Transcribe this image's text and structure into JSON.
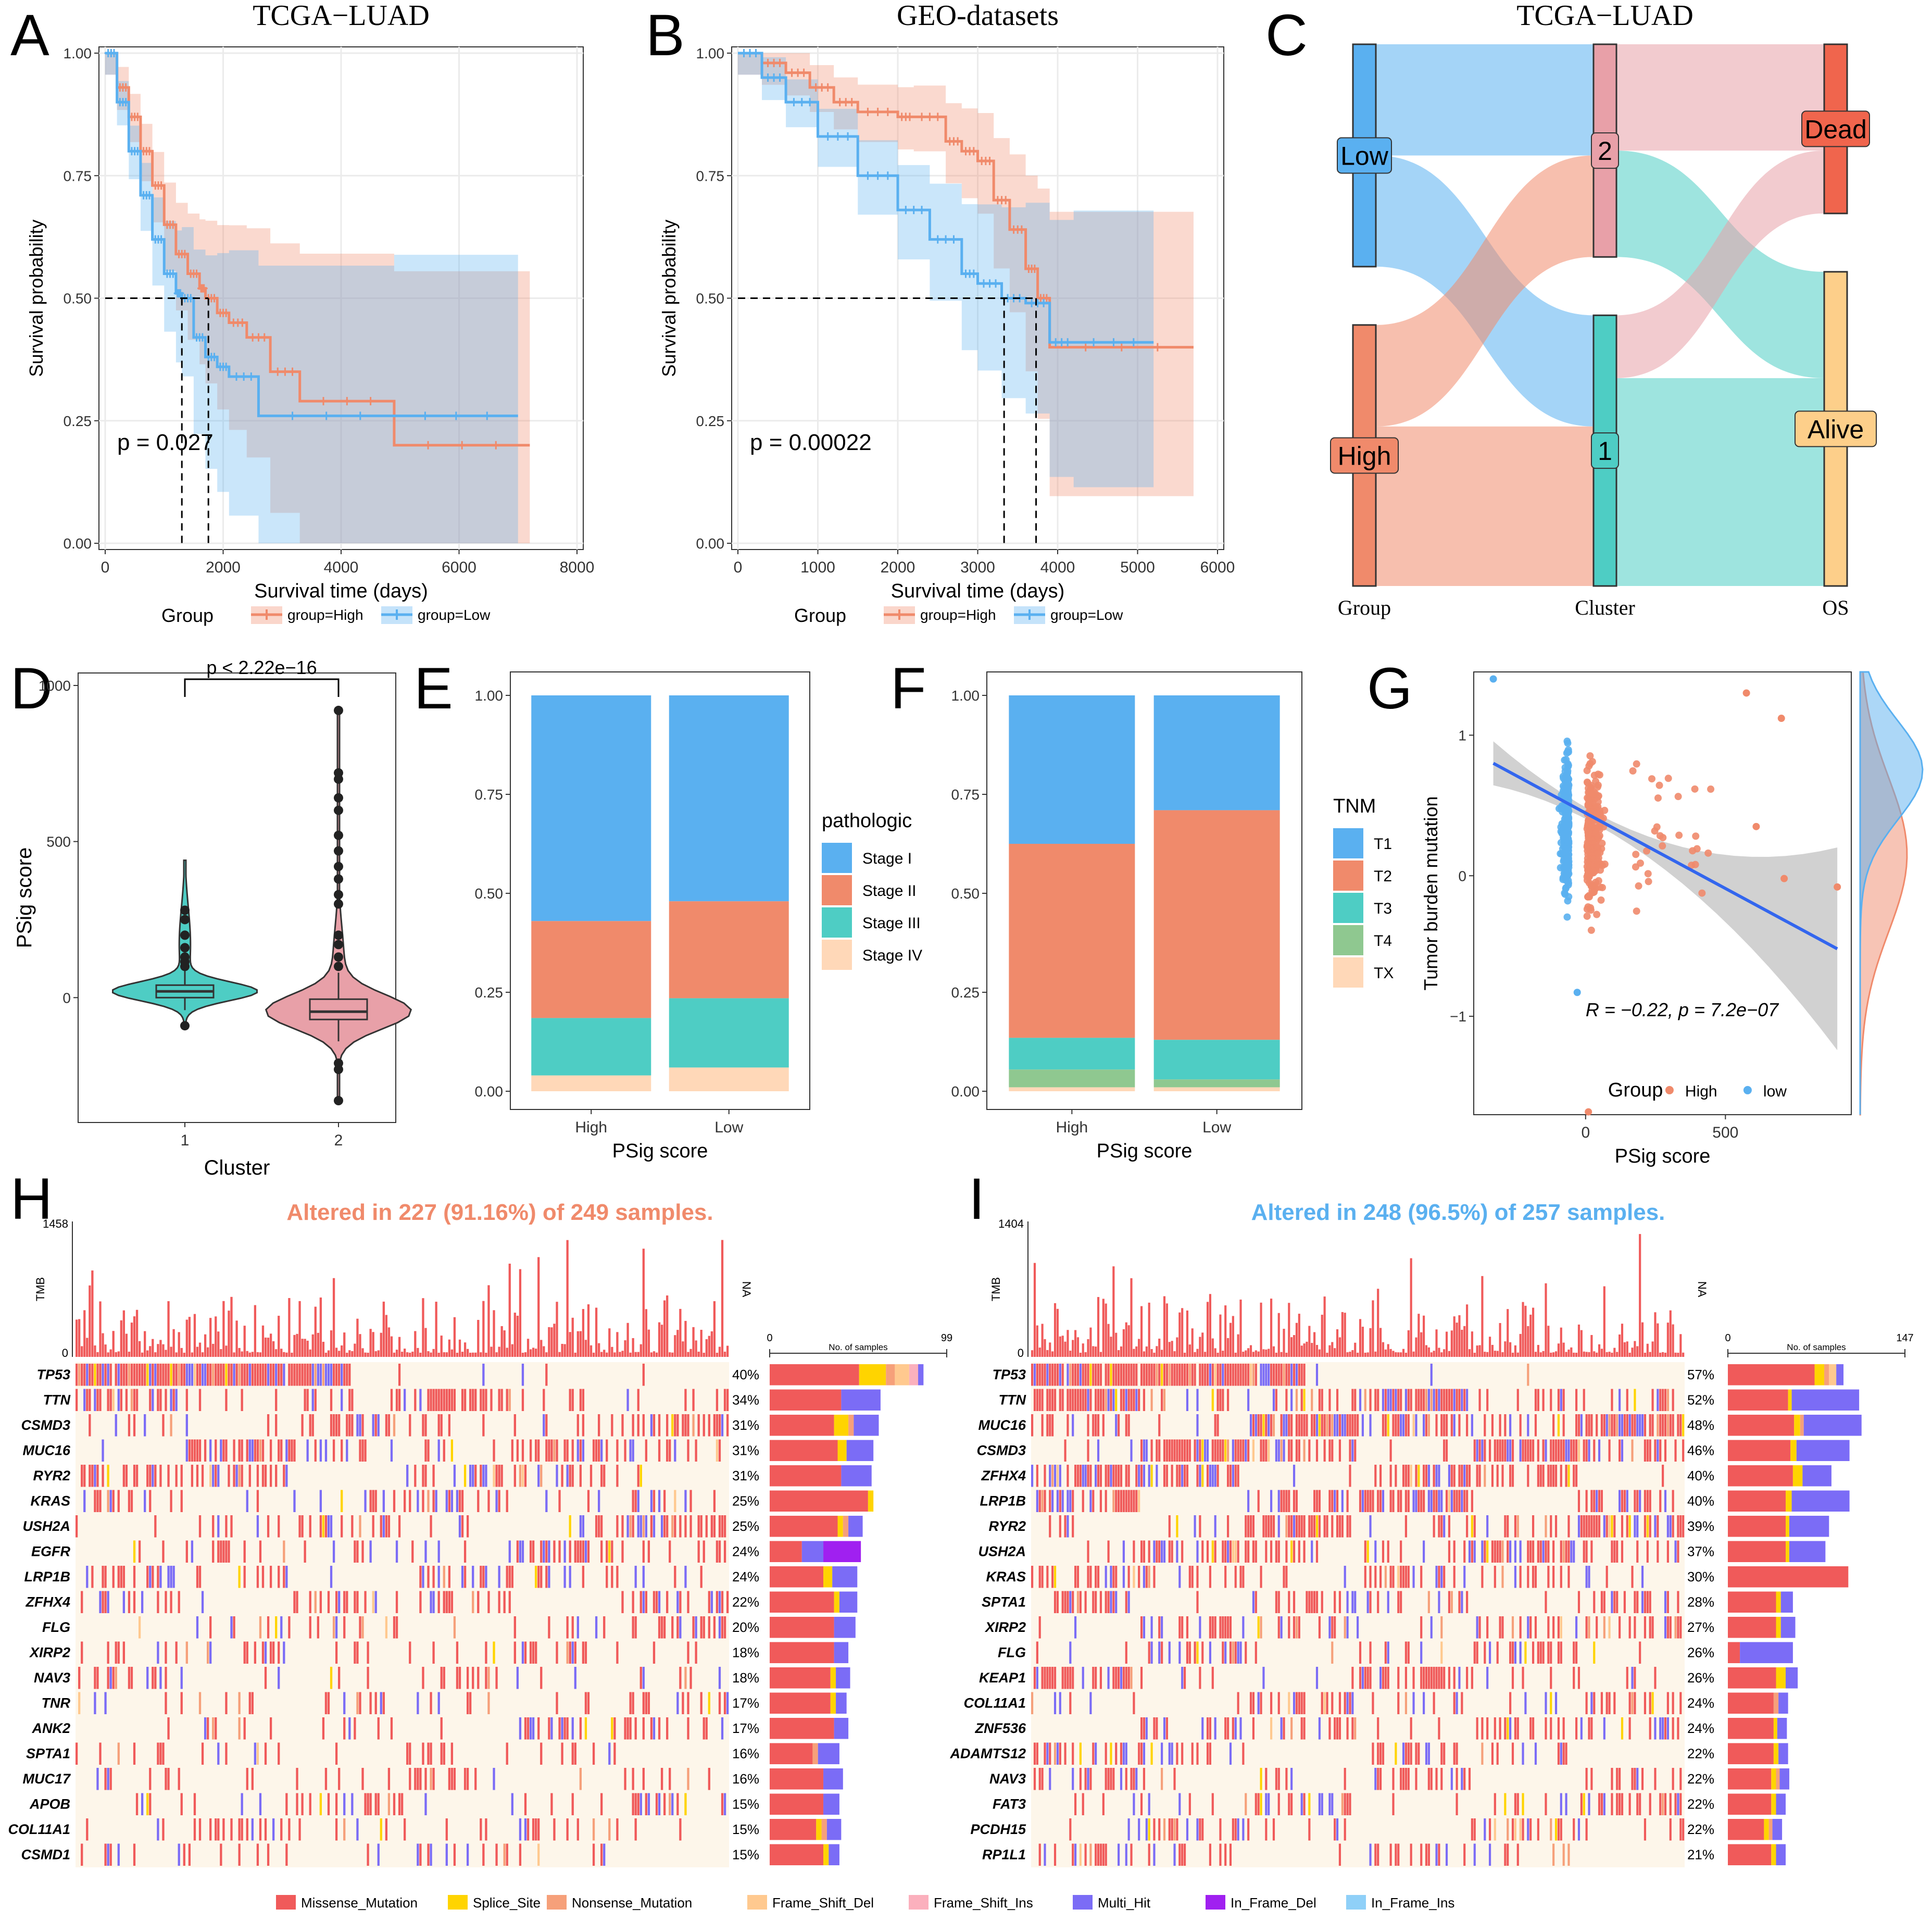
{
  "colors": {
    "high": "#F08A6B",
    "low": "#5AB0F0",
    "teal": "#4ECDC4",
    "pink": "#E8A0A8",
    "grid": "#EBEBEB",
    "stage4": "#FFD8B8",
    "t4": "#8FC890",
    "dead": "#F0654D",
    "alive": "#FDCF8A"
  },
  "panel_letters": {
    "A": "A",
    "B": "B",
    "C": "C",
    "D": "D",
    "E": "E",
    "F": "F",
    "G": "G",
    "H": "H",
    "I": "I"
  },
  "chart_data": [
    {
      "id": "A",
      "type": "line",
      "subtype": "kaplan-meier",
      "title": "TCGA−LUAD",
      "xlabel": "Survival time (days)",
      "ylabel": "Survival probability",
      "xlim": [
        0,
        8000
      ],
      "ylim": [
        0,
        1
      ],
      "xticks": [
        "0",
        "2000",
        "4000",
        "6000",
        "8000"
      ],
      "yticks": [
        "0.00",
        "0.25",
        "0.50",
        "0.75",
        "1.00"
      ],
      "pvalue_label": "p = 0.027",
      "legend_title": "Group",
      "legend": [
        "group=High",
        "group=Low"
      ],
      "series": [
        {
          "name": "group=High",
          "x": [
            0,
            200,
            400,
            600,
            800,
            1000,
            1200,
            1400,
            1600,
            1700,
            1900,
            2100,
            2400,
            2800,
            3300,
            4900,
            7200
          ],
          "y": [
            1.0,
            0.93,
            0.87,
            0.8,
            0.73,
            0.65,
            0.59,
            0.55,
            0.52,
            0.5,
            0.47,
            0.45,
            0.42,
            0.35,
            0.29,
            0.2,
            0.2
          ]
        },
        {
          "name": "group=Low",
          "x": [
            0,
            200,
            400,
            600,
            800,
            1000,
            1200,
            1300,
            1500,
            1700,
            1900,
            2100,
            2600,
            4900,
            7000
          ],
          "y": [
            1.0,
            0.9,
            0.8,
            0.71,
            0.62,
            0.55,
            0.51,
            0.5,
            0.42,
            0.38,
            0.36,
            0.34,
            0.26,
            0.26,
            0.26
          ]
        }
      ],
      "medians": [
        {
          "name": "group=Low",
          "x": 1300
        },
        {
          "name": "group=High",
          "x": 1750
        }
      ]
    },
    {
      "id": "B",
      "type": "line",
      "subtype": "kaplan-meier",
      "title": "GEO-datasets",
      "xlabel": "Survival time (days)",
      "ylabel": "Survival probability",
      "xlim": [
        0,
        6000
      ],
      "ylim": [
        0,
        1
      ],
      "xticks": [
        "0",
        "1000",
        "2000",
        "3000",
        "4000",
        "5000",
        "6000"
      ],
      "yticks": [
        "0.00",
        "0.25",
        "0.50",
        "0.75",
        "1.00"
      ],
      "pvalue_label": "p = 0.00022",
      "legend_title": "Group",
      "legend": [
        "group=High",
        "group=Low"
      ],
      "series": [
        {
          "name": "group=High",
          "x": [
            0,
            300,
            600,
            900,
            1200,
            1500,
            2000,
            2200,
            2600,
            2800,
            3000,
            3200,
            3400,
            3600,
            3750,
            3900,
            5700
          ],
          "y": [
            1.0,
            0.98,
            0.96,
            0.93,
            0.9,
            0.88,
            0.87,
            0.87,
            0.82,
            0.8,
            0.78,
            0.7,
            0.64,
            0.56,
            0.5,
            0.4,
            0.4
          ]
        },
        {
          "name": "group=Low",
          "x": [
            0,
            300,
            600,
            1000,
            1500,
            2000,
            2400,
            2800,
            3000,
            3300,
            3600,
            3900,
            4200,
            5200
          ],
          "y": [
            1.0,
            0.95,
            0.9,
            0.83,
            0.75,
            0.68,
            0.62,
            0.55,
            0.53,
            0.5,
            0.49,
            0.41,
            0.41,
            0.41
          ]
        }
      ],
      "medians": [
        {
          "name": "group=Low",
          "x": 3330
        },
        {
          "name": "group=High",
          "x": 3730
        }
      ]
    },
    {
      "id": "C",
      "type": "sankey",
      "title": "TCGA−LUAD",
      "axes": [
        "Group",
        "Cluster",
        "OS"
      ],
      "nodes": {
        "Group": [
          {
            "label": "Low",
            "share": 0.46
          },
          {
            "label": "High",
            "share": 0.54
          }
        ],
        "Cluster": [
          {
            "label": "2",
            "share": 0.44
          },
          {
            "label": "1",
            "share": 0.56
          }
        ],
        "OS": [
          {
            "label": "Dead",
            "share": 0.35
          },
          {
            "label": "Alive",
            "share": 0.65
          }
        ]
      },
      "flows": [
        {
          "from": "Low",
          "to": "2",
          "value": 0.23
        },
        {
          "from": "Low",
          "to": "1",
          "value": 0.23
        },
        {
          "from": "High",
          "to": "2",
          "value": 0.21
        },
        {
          "from": "High",
          "to": "1",
          "value": 0.33
        },
        {
          "from": "2",
          "to": "Dead",
          "value": 0.22
        },
        {
          "from": "2",
          "to": "Alive",
          "value": 0.22
        },
        {
          "from": "1",
          "to": "Dead",
          "value": 0.13
        },
        {
          "from": "1",
          "to": "Alive",
          "value": 0.43
        }
      ]
    },
    {
      "id": "D",
      "type": "violin",
      "xlabel": "Cluster",
      "ylabel": "PSig score",
      "categories": [
        "1",
        "2"
      ],
      "ylim": [
        -350,
        1000
      ],
      "yticks": [
        "0",
        "500",
        "1000"
      ],
      "annotation": "p < 2.22e−16",
      "stats": [
        {
          "name": "1",
          "q1": 0,
          "median": 20,
          "q3": 40,
          "lo": -40,
          "hi": 90,
          "min": -90,
          "max": 440,
          "outliers": [
            100,
            115,
            130,
            160,
            200,
            250,
            280
          ]
        },
        {
          "name": "2",
          "q1": -70,
          "median": -45,
          "q3": -5,
          "lo": -140,
          "hi": 80,
          "min": -330,
          "max": 920,
          "outliers": [
            -230,
            -210,
            100,
            130,
            170,
            200,
            300,
            330,
            380,
            420,
            470,
            520,
            600,
            640,
            700,
            720,
            920
          ]
        }
      ]
    },
    {
      "id": "E",
      "type": "bar",
      "stacked": true,
      "xlabel": "PSig score",
      "ylabel": "",
      "categories": [
        "High",
        "Low"
      ],
      "ylim": [
        0,
        1
      ],
      "yticks": [
        "0.00",
        "0.25",
        "0.50",
        "0.75",
        "1.00"
      ],
      "legend_title": "pathologic",
      "series": [
        {
          "name": "Stage I",
          "values": [
            0.57,
            0.52
          ]
        },
        {
          "name": "Stage II",
          "values": [
            0.245,
            0.245
          ]
        },
        {
          "name": "Stage III",
          "values": [
            0.145,
            0.175
          ]
        },
        {
          "name": "Stage IV",
          "values": [
            0.04,
            0.06
          ]
        }
      ]
    },
    {
      "id": "F",
      "type": "bar",
      "stacked": true,
      "xlabel": "PSig score",
      "ylabel": "",
      "categories": [
        "High",
        "Low"
      ],
      "ylim": [
        0,
        1
      ],
      "yticks": [
        "0.00",
        "0.25",
        "0.50",
        "0.75",
        "1.00"
      ],
      "legend_title": "TNM",
      "series": [
        {
          "name": "T1",
          "values": [
            0.375,
            0.29
          ]
        },
        {
          "name": "T2",
          "values": [
            0.49,
            0.58
          ]
        },
        {
          "name": "T3",
          "values": [
            0.08,
            0.1
          ]
        },
        {
          "name": "T4",
          "values": [
            0.045,
            0.02
          ]
        },
        {
          "name": "TX",
          "values": [
            0.01,
            0.01
          ]
        }
      ]
    },
    {
      "id": "G",
      "type": "scatter",
      "xlabel": "PSig score",
      "ylabel": "Tumor burden mutation",
      "xlim": [
        -400,
        950
      ],
      "ylim": [
        -1.7,
        1.45
      ],
      "xticks": [
        "0",
        "500"
      ],
      "yticks": [
        "−1",
        "0",
        "1"
      ],
      "annotation": "R = −0.22, p = 7.2e−07",
      "legend_title": "Group",
      "legend": [
        "High",
        "low"
      ],
      "fit": {
        "x": [
          -330,
          900
        ],
        "y": [
          0.8,
          -0.52
        ]
      }
    },
    {
      "id": "H",
      "type": "oncoplot",
      "title": "Altered in 227 (91.16%) of 249 samples.",
      "tmb_max": "1458",
      "tmb_label": "TMB",
      "na_label": "NA",
      "bar_axis": [
        "0",
        "No. of samples",
        "99"
      ],
      "bar_max": 99,
      "genes": [
        "TP53",
        "TTN",
        "CSMD3",
        "MUC16",
        "RYR2",
        "KRAS",
        "USH2A",
        "EGFR",
        "LRP1B",
        "ZFHX4",
        "FLG",
        "XIRP2",
        "NAV3",
        "TNR",
        "ANK2",
        "SPTA1",
        "MUC17",
        "APOB",
        "COL11A1",
        "CSMD1"
      ],
      "percents": [
        "40%",
        "34%",
        "31%",
        "31%",
        "31%",
        "25%",
        "25%",
        "24%",
        "24%",
        "22%",
        "20%",
        "18%",
        "18%",
        "17%",
        "17%",
        "16%",
        "16%",
        "15%",
        "15%",
        "15%"
      ],
      "bars": [
        [
          50,
          15,
          5,
          8,
          5,
          3
        ],
        [
          40,
          0,
          0,
          0,
          0,
          22
        ],
        [
          36,
          8,
          3,
          0,
          0,
          14
        ],
        [
          38,
          5,
          0,
          0,
          0,
          15
        ],
        [
          40,
          0,
          0,
          0,
          0,
          17
        ],
        [
          55,
          3,
          0,
          0,
          0,
          0
        ],
        [
          38,
          3,
          3,
          0,
          0,
          8
        ],
        [
          18,
          0,
          0,
          0,
          0,
          12,
          21
        ],
        [
          30,
          5,
          0,
          0,
          0,
          14
        ],
        [
          36,
          3,
          0,
          0,
          0,
          10
        ],
        [
          36,
          0,
          0,
          0,
          0,
          12
        ],
        [
          36,
          0,
          0,
          0,
          0,
          8
        ],
        [
          34,
          3,
          0,
          0,
          0,
          8
        ],
        [
          34,
          3,
          0,
          0,
          0,
          6
        ],
        [
          36,
          0,
          0,
          0,
          0,
          8
        ],
        [
          24,
          0,
          3,
          0,
          0,
          12
        ],
        [
          30,
          0,
          0,
          0,
          0,
          11
        ],
        [
          30,
          0,
          0,
          0,
          0,
          9
        ],
        [
          26,
          3,
          3,
          0,
          0,
          8
        ],
        [
          30,
          3,
          0,
          0,
          0,
          6
        ]
      ]
    },
    {
      "id": "I",
      "type": "oncoplot",
      "title": "Altered in 248 (96.5%) of 257 samples.",
      "tmb_max": "1404",
      "tmb_label": "TMB",
      "na_label": "NA",
      "bar_axis": [
        "0",
        "No. of samples",
        "147"
      ],
      "bar_max": 147,
      "genes": [
        "TP53",
        "TTN",
        "MUC16",
        "CSMD3",
        "ZFHX4",
        "LRP1B",
        "RYR2",
        "USH2A",
        "KRAS",
        "SPTA1",
        "XIRP2",
        "FLG",
        "KEAP1",
        "COL11A1",
        "ZNF536",
        "ADAMTS12",
        "NAV3",
        "FAT3",
        "PCDH15",
        "RP1L1"
      ],
      "percents": [
        "57%",
        "52%",
        "48%",
        "46%",
        "40%",
        "40%",
        "39%",
        "37%",
        "30%",
        "28%",
        "27%",
        "26%",
        "26%",
        "24%",
        "24%",
        "22%",
        "22%",
        "22%",
        "22%",
        "21%"
      ],
      "bars": [
        [
          72,
          8,
          4,
          6,
          0,
          6
        ],
        [
          50,
          3,
          0,
          0,
          0,
          56
        ],
        [
          55,
          5,
          3,
          0,
          0,
          48
        ],
        [
          52,
          5,
          0,
          0,
          0,
          44
        ],
        [
          54,
          8,
          0,
          0,
          0,
          24
        ],
        [
          48,
          5,
          0,
          0,
          0,
          48
        ],
        [
          48,
          3,
          0,
          0,
          0,
          33
        ],
        [
          48,
          3,
          0,
          0,
          0,
          30
        ],
        [
          100,
          0,
          0,
          0,
          0,
          0
        ],
        [
          40,
          4,
          0,
          0,
          0,
          10
        ],
        [
          40,
          4,
          0,
          0,
          0,
          12
        ],
        [
          10,
          0,
          0,
          0,
          0,
          44
        ],
        [
          40,
          8,
          0,
          0,
          0,
          10
        ],
        [
          38,
          0,
          4,
          0,
          0,
          8
        ],
        [
          38,
          3,
          0,
          0,
          0,
          8
        ],
        [
          38,
          4,
          0,
          0,
          0,
          8
        ],
        [
          36,
          4,
          3,
          0,
          0,
          8
        ],
        [
          36,
          4,
          0,
          0,
          0,
          8
        ],
        [
          30,
          4,
          3,
          0,
          0,
          8
        ],
        [
          36,
          4,
          0,
          0,
          0,
          8
        ]
      ]
    }
  ],
  "mutation_legend": [
    {
      "name": "Missense_Mutation",
      "color": "#F05A5A"
    },
    {
      "name": "Splice_Site",
      "color": "#FFD400"
    },
    {
      "name": "Nonsense_Mutation",
      "color": "#F6A07A"
    },
    {
      "name": "Frame_Shift_Del",
      "color": "#FFC98F"
    },
    {
      "name": "Frame_Shift_Ins",
      "color": "#FBB0BD"
    },
    {
      "name": "Multi_Hit",
      "color": "#7B6CF6"
    },
    {
      "name": "In_Frame_Del",
      "color": "#A020F0"
    },
    {
      "name": "In_Frame_Ins",
      "color": "#8FD0F8"
    }
  ]
}
